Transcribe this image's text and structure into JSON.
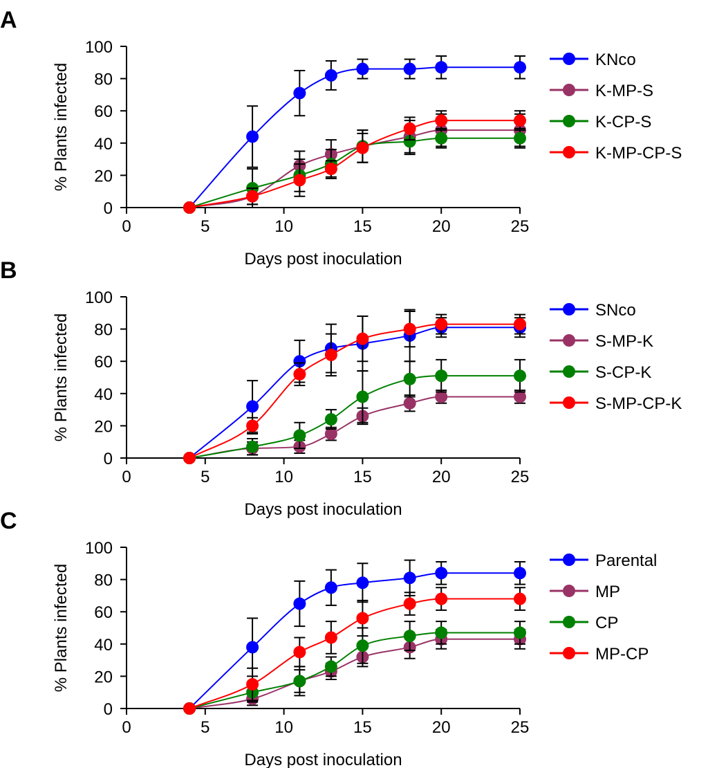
{
  "colors": {
    "blue": "#0000ff",
    "purple": "#993366",
    "green": "#008000",
    "red": "#ff0000",
    "axis": "#000000",
    "errorbar": "#000000"
  },
  "chart_data": [
    {
      "type": "line",
      "panel": "A",
      "xlabel": "Days post inoculation",
      "ylabel": "% Plants infected",
      "xlim": [
        0,
        25
      ],
      "ylim": [
        0,
        100
      ],
      "xticks": [
        0,
        5,
        10,
        15,
        20,
        25
      ],
      "yticks": [
        0,
        20,
        40,
        60,
        80,
        100
      ],
      "grid": false,
      "legend_position": "right",
      "x": [
        4,
        8,
        11,
        13,
        15,
        18,
        20,
        25
      ],
      "series": [
        {
          "name": "KNco",
          "color": "#0000ff",
          "values": [
            0,
            44,
            71,
            82,
            86,
            86,
            87,
            87
          ],
          "errors": [
            0,
            19,
            14,
            9,
            6,
            6,
            7,
            7
          ]
        },
        {
          "name": "K-MP-S",
          "color": "#993366",
          "values": [
            0,
            7,
            26,
            33,
            38,
            44,
            48,
            48
          ],
          "errors": [
            0,
            5,
            9,
            9,
            10,
            10,
            10,
            10
          ]
        },
        {
          "name": "K-CP-S",
          "color": "#008000",
          "values": [
            0,
            12,
            20,
            27,
            38,
            41,
            43,
            43
          ],
          "errors": [
            0,
            12,
            10,
            9,
            10,
            8,
            6,
            6
          ]
        },
        {
          "name": "K-MP-CP-S",
          "color": "#ff0000",
          "values": [
            0,
            7,
            17,
            24,
            37,
            49,
            54,
            54
          ],
          "errors": [
            0,
            5,
            10,
            5,
            9,
            7,
            6,
            6
          ]
        }
      ]
    },
    {
      "type": "line",
      "panel": "B",
      "xlabel": "Days post inoculation",
      "ylabel": "% Plants infected",
      "xlim": [
        0,
        25
      ],
      "ylim": [
        0,
        100
      ],
      "xticks": [
        0,
        5,
        10,
        15,
        20,
        25
      ],
      "yticks": [
        0,
        20,
        40,
        60,
        80,
        100
      ],
      "grid": false,
      "legend_position": "right",
      "x": [
        4,
        8,
        11,
        13,
        15,
        18,
        20,
        25
      ],
      "series": [
        {
          "name": "SNco",
          "color": "#0000ff",
          "values": [
            0,
            32,
            60,
            68,
            71,
            76,
            81,
            81
          ],
          "errors": [
            0,
            16,
            13,
            15,
            17,
            16,
            6,
            6
          ]
        },
        {
          "name": "S-MP-K",
          "color": "#993366",
          "values": [
            0,
            6,
            7,
            15,
            26,
            34,
            38,
            38
          ],
          "errors": [
            0,
            4,
            4,
            4,
            5,
            5,
            4,
            4
          ]
        },
        {
          "name": "S-CP-K",
          "color": "#008000",
          "values": [
            0,
            7,
            14,
            24,
            38,
            49,
            51,
            51
          ],
          "errors": [
            0,
            5,
            8,
            6,
            16,
            11,
            10,
            10
          ]
        },
        {
          "name": "S-MP-CP-K",
          "color": "#ff0000",
          "values": [
            0,
            20,
            52,
            64,
            74,
            80,
            83,
            83
          ],
          "errors": [
            0,
            5,
            7,
            13,
            14,
            11,
            6,
            6
          ]
        }
      ]
    },
    {
      "type": "line",
      "panel": "C",
      "xlabel": "Days post inoculation",
      "ylabel": "% Plants infected",
      "xlim": [
        0,
        25
      ],
      "ylim": [
        0,
        100
      ],
      "xticks": [
        0,
        5,
        10,
        15,
        20,
        25
      ],
      "yticks": [
        0,
        20,
        40,
        60,
        80,
        100
      ],
      "grid": false,
      "legend_position": "right",
      "x": [
        4,
        8,
        11,
        13,
        15,
        18,
        20,
        25
      ],
      "series": [
        {
          "name": "Parental",
          "color": "#0000ff",
          "values": [
            0,
            38,
            65,
            75,
            78,
            81,
            84,
            84
          ],
          "errors": [
            0,
            18,
            14,
            11,
            12,
            11,
            7,
            7
          ]
        },
        {
          "name": "MP",
          "color": "#993366",
          "values": [
            0,
            6,
            17,
            23,
            32,
            38,
            43,
            43
          ],
          "errors": [
            0,
            4,
            7,
            5,
            6,
            7,
            6,
            6
          ]
        },
        {
          "name": "CP",
          "color": "#008000",
          "values": [
            0,
            10,
            17,
            26,
            39,
            45,
            47,
            47
          ],
          "errors": [
            0,
            6,
            9,
            6,
            11,
            9,
            7,
            7
          ]
        },
        {
          "name": "MP-CP",
          "color": "#ff0000",
          "values": [
            0,
            15,
            35,
            44,
            56,
            65,
            68,
            68
          ],
          "errors": [
            0,
            10,
            9,
            10,
            11,
            7,
            7,
            7
          ]
        }
      ]
    }
  ]
}
